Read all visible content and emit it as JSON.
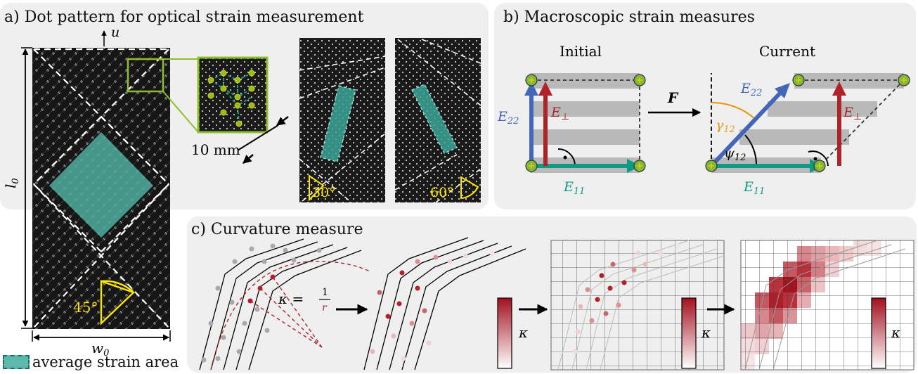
{
  "panels": {
    "a": {
      "title": "a) Dot pattern for optical strain measurement",
      "label_u": "u",
      "label_l0": "l",
      "label_l0_sub": "0",
      "label_w0": "w",
      "label_w0_sub": "0",
      "scale_label": "10 mm",
      "angle_main": "45°",
      "angle_left": "30°",
      "angle_right": "60°"
    },
    "b": {
      "title": "b) Macroscopic strain measures",
      "initial_label": "Initial",
      "current_label": "Current",
      "F": "F",
      "E22": "E",
      "E22_sub": "22",
      "E11": "E",
      "E11_sub": "11",
      "Eperp": "E",
      "Eperp_sub": "⊥",
      "gamma": "γ",
      "gamma_sub": "12",
      "psi": "ψ",
      "psi_sub": "12"
    },
    "c": {
      "title": "c) Curvature measure",
      "kappa_eq": "κ =",
      "kappa_num": "1",
      "kappa_den": "r",
      "kappa": "κ"
    }
  },
  "legend": {
    "label": "average strain area"
  },
  "colors": {
    "teal": "#119983",
    "blue": "#4466b8",
    "red": "#b0212a",
    "orange": "#e39a1c",
    "yellow": "#ffe600",
    "green_dot": "#7fb83a",
    "frame_green": "#8dbf2a"
  }
}
